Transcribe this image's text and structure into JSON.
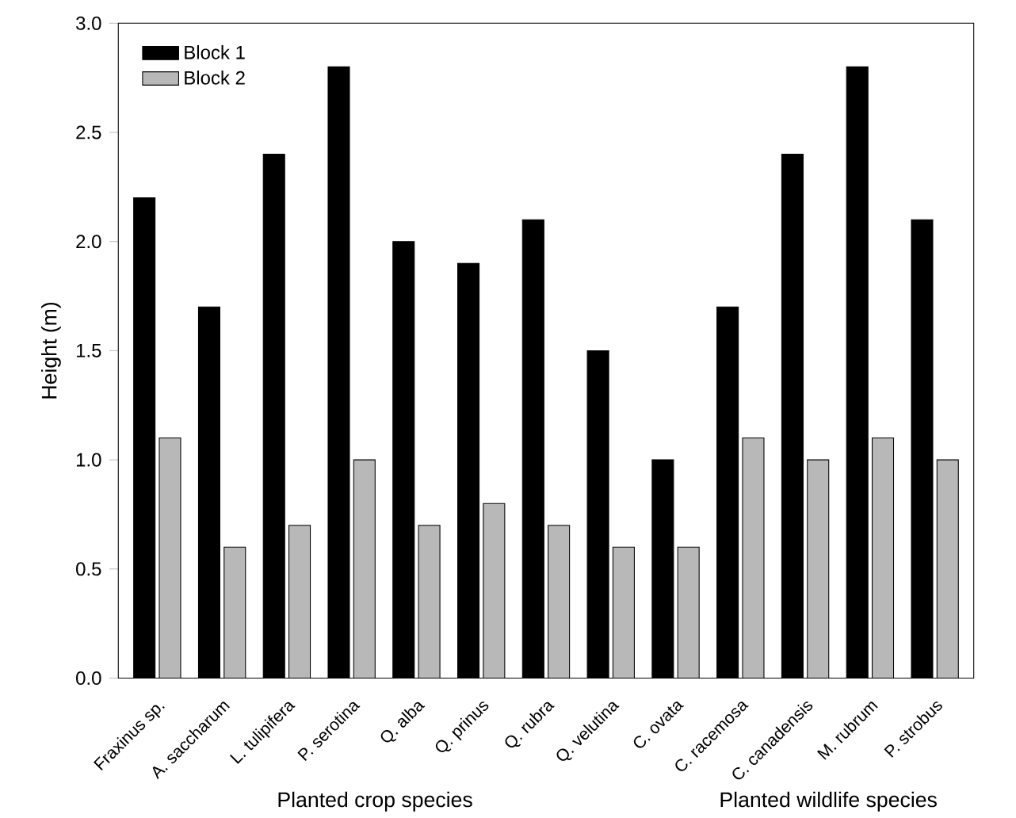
{
  "chart_data": {
    "type": "bar",
    "ylabel": "Height (m)",
    "categories": [
      "Fraxinus sp.",
      "A. saccharum",
      "L. tulipifera",
      "P. serotina",
      "Q. alba",
      "Q. prinus",
      "Q. rubra",
      "Q. velutina",
      "C. ovata",
      "C. racemosa",
      "C. canadensis",
      "M. rubrum",
      "P. strobus"
    ],
    "series": [
      {
        "name": "Block 1",
        "color": "#000000",
        "values": [
          2.2,
          1.7,
          2.4,
          2.8,
          2.0,
          1.9,
          2.1,
          1.5,
          1.0,
          1.7,
          2.4,
          2.8,
          2.1
        ]
      },
      {
        "name": "Block 2",
        "color": "#b8b8b8",
        "values": [
          1.1,
          0.6,
          0.7,
          1.0,
          0.7,
          0.8,
          0.7,
          0.6,
          0.6,
          1.1,
          1.0,
          1.1,
          1.0
        ]
      }
    ],
    "ylim": [
      0,
      3
    ],
    "yticks": [
      {
        "value": 0,
        "label": "0.0"
      },
      {
        "value": 0.5,
        "label": "0.5"
      },
      {
        "value": 1,
        "label": "1.0"
      },
      {
        "value": 1.5,
        "label": "1.5"
      },
      {
        "value": 2,
        "label": "2.0"
      },
      {
        "value": 2.5,
        "label": "2.5"
      },
      {
        "value": 3,
        "label": "3.0"
      }
    ],
    "legend": "top left",
    "annotations": [
      "Planted crop species",
      "Planted wildlife species"
    ]
  }
}
